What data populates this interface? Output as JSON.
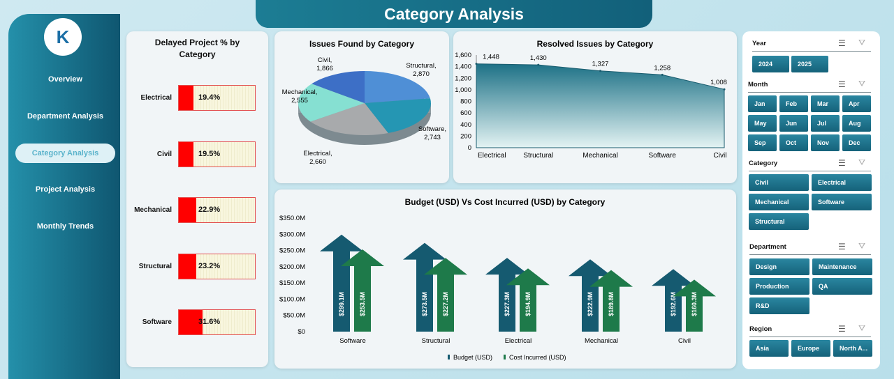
{
  "title": "Category Analysis",
  "sidebar": {
    "logo_text": "K",
    "items": [
      {
        "label": "Overview"
      },
      {
        "label": "Department Analysis"
      },
      {
        "label": "Category Analysis",
        "active": true
      },
      {
        "label": "Project Analysis"
      },
      {
        "label": "Monthly Trends"
      }
    ]
  },
  "delayed": {
    "title": "Delayed Project % by Category",
    "rows": [
      {
        "label": "Electrical",
        "value": 19.4,
        "text": "19.4%"
      },
      {
        "label": "Civil",
        "value": 19.5,
        "text": "19.5%"
      },
      {
        "label": "Mechanical",
        "value": 22.9,
        "text": "22.9%"
      },
      {
        "label": "Structural",
        "value": 23.2,
        "text": "23.2%"
      },
      {
        "label": "Software",
        "value": 31.6,
        "text": "31.6%"
      }
    ]
  },
  "chart_data": [
    {
      "type": "pie",
      "title": "Issues Found by Category",
      "labels": [
        "Structural",
        "Software",
        "Electrical",
        "Mechanical",
        "Civil"
      ],
      "values": [
        2870,
        2743,
        2660,
        2555,
        1866
      ],
      "value_labels": [
        "2,870",
        "2,743",
        "2,660",
        "2,555",
        "1,866"
      ],
      "colors": [
        "#4f8fd6",
        "#2596b3",
        "#a8aaac",
        "#86e0d2",
        "#3d6fc6"
      ]
    },
    {
      "type": "area",
      "title": "Resolved Issues by Category",
      "categories": [
        "Electrical",
        "Structural",
        "Mechanical",
        "Software",
        "Civil"
      ],
      "values": [
        1448,
        1430,
        1327,
        1258,
        1008
      ],
      "value_labels": [
        "1,448",
        "1,430",
        "1,327",
        "1,258",
        "1,008"
      ],
      "ylim": [
        0,
        1600
      ],
      "yticks": [
        "0",
        "200",
        "400",
        "600",
        "800",
        "1,000",
        "1,200",
        "1,400",
        "1,600"
      ]
    },
    {
      "type": "bar",
      "title": "Budget (USD) Vs Cost Incurred (USD) by Category",
      "categories": [
        "Software",
        "Structural",
        "Electrical",
        "Mechanical",
        "Civil"
      ],
      "series": [
        {
          "name": "Budget (USD)",
          "values": [
            299.1,
            273.5,
            227.3,
            222.9,
            192.6
          ],
          "labels": [
            "$299.1M",
            "$273.5M",
            "$227.3M",
            "$222.9M",
            "$192.6M"
          ],
          "color": "#155a70"
        },
        {
          "name": "Cost Incurred (USD)",
          "values": [
            253.5,
            227.2,
            194.9,
            189.8,
            160.3
          ],
          "labels": [
            "$253.5M",
            "$227.2M",
            "$194.9M",
            "$189.8M",
            "$160.3M"
          ],
          "color": "#1e7a4a"
        }
      ],
      "ylim": [
        0,
        350
      ],
      "yticks": [
        "$0",
        "$50.0M",
        "$100.0M",
        "$150.0M",
        "$200.0M",
        "$250.0M",
        "$300.0M",
        "$350.0M"
      ]
    }
  ],
  "slicers": [
    {
      "title": "Year",
      "items": [
        "2024",
        "2025"
      ]
    },
    {
      "title": "Month",
      "items": [
        "Jan",
        "Feb",
        "Mar",
        "Apr",
        "May",
        "Jun",
        "Jul",
        "Aug",
        "Sep",
        "Oct",
        "Nov",
        "Dec"
      ]
    },
    {
      "title": "Category",
      "items": [
        "Civil",
        "Electrical",
        "Mechanical",
        "Software",
        "Structural"
      ]
    },
    {
      "title": "Department",
      "items": [
        "Design",
        "Maintenance",
        "Production",
        "QA",
        "R&D"
      ]
    },
    {
      "title": "Region",
      "items": [
        "Asia",
        "Europe",
        "North A..."
      ]
    }
  ],
  "icons": {
    "multiselect": "☰",
    "clear_filter": "⛛"
  }
}
